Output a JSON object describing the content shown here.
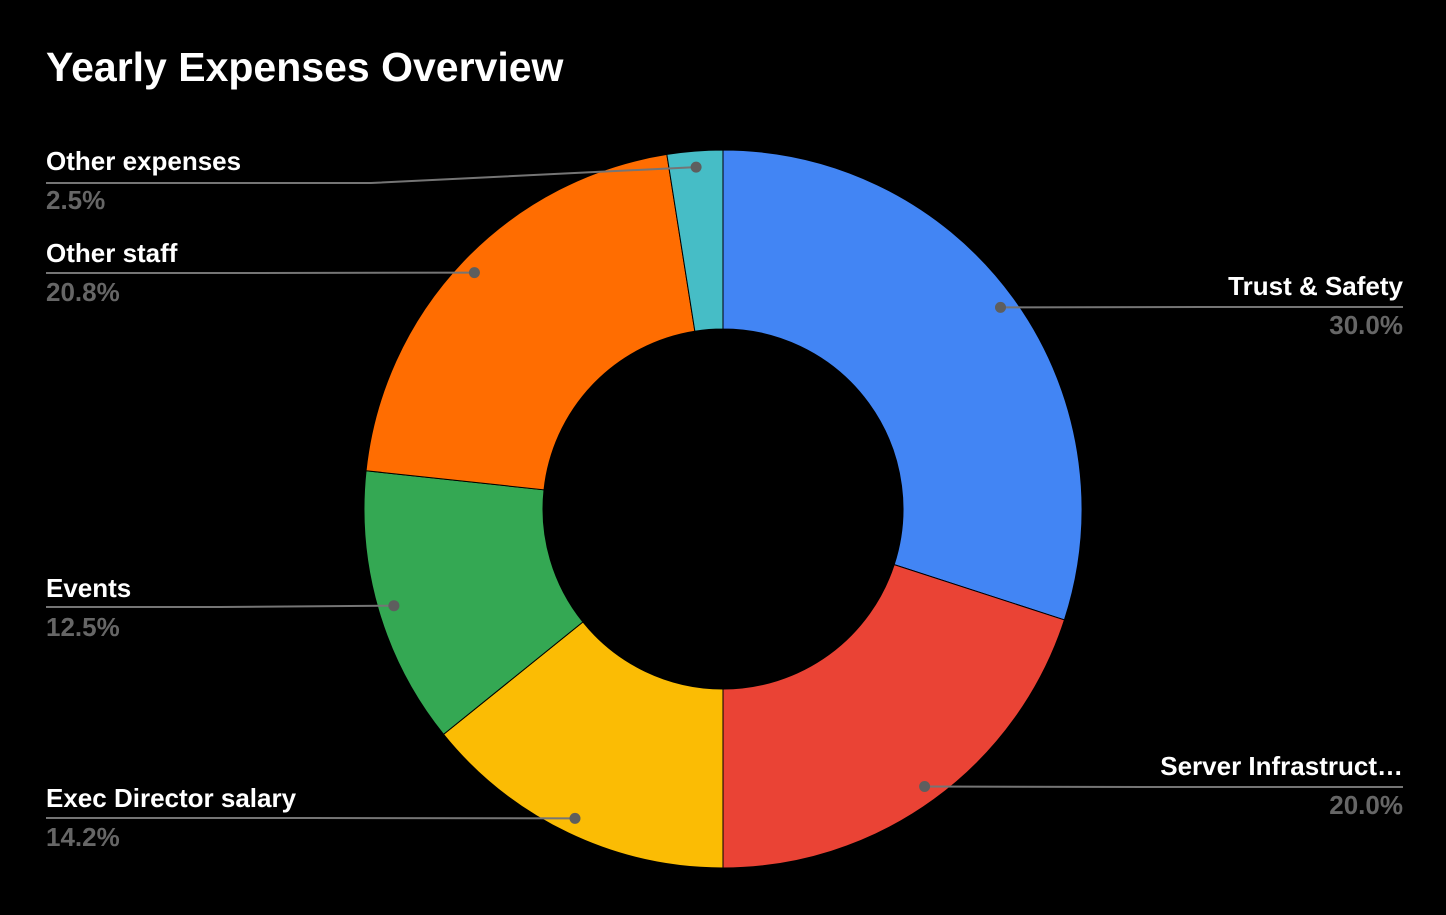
{
  "title": "Yearly Expenses Overview",
  "chart_data": {
    "type": "pie",
    "subtype": "donut",
    "title": "Yearly Expenses Overview",
    "unit": "%",
    "start_angle_deg": 0,
    "direction": "clockwise",
    "donut_hole_ratio": 0.5,
    "legend_position": "none",
    "labels_style": "outside-with-leader-lines",
    "slices": [
      {
        "label": "Trust & Safety",
        "value": 30.0,
        "percent_label": "30.0%",
        "color": "#4285F4"
      },
      {
        "label": "Server Infrastruct…",
        "value": 20.0,
        "percent_label": "20.0%",
        "color": "#EA4335"
      },
      {
        "label": "Exec Director salary",
        "value": 14.2,
        "percent_label": "14.2%",
        "color": "#FBBC04"
      },
      {
        "label": "Events",
        "value": 12.5,
        "percent_label": "12.5%",
        "color": "#34A853"
      },
      {
        "label": "Other staff",
        "value": 20.8,
        "percent_label": "20.8%",
        "color": "#FF6D01"
      },
      {
        "label": "Other expenses",
        "value": 2.5,
        "percent_label": "2.5%",
        "color": "#46BDC6"
      }
    ]
  },
  "colors": {
    "background": "#000000",
    "title_text": "#FFFFFF",
    "label_text": "#FFFFFF",
    "percent_text": "#666666",
    "leader_line": "#757575",
    "leader_dot": "#5E5E5E",
    "slice_border": "#000000"
  }
}
